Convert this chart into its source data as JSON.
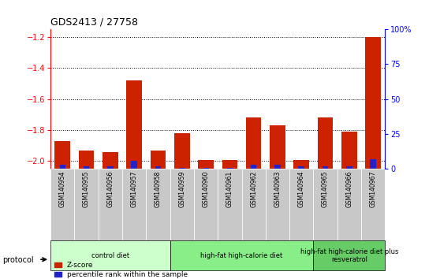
{
  "title": "GDS2413 / 27758",
  "samples": [
    "GSM140954",
    "GSM140955",
    "GSM140956",
    "GSM140957",
    "GSM140958",
    "GSM140959",
    "GSM140960",
    "GSM140961",
    "GSM140962",
    "GSM140963",
    "GSM140964",
    "GSM140965",
    "GSM140966",
    "GSM140967"
  ],
  "zscore": [
    -1.87,
    -1.93,
    -1.94,
    -1.48,
    -1.93,
    -1.82,
    -1.99,
    -1.99,
    -1.72,
    -1.77,
    -1.99,
    -1.72,
    -1.81,
    -1.2
  ],
  "percentile": [
    3,
    2,
    2,
    6,
    2,
    1,
    0.5,
    0.5,
    3,
    3,
    2,
    2,
    2,
    7
  ],
  "ylim_left": [
    -2.05,
    -1.15
  ],
  "ylim_right": [
    0,
    100
  ],
  "yticks_left": [
    -2.0,
    -1.8,
    -1.6,
    -1.4,
    -1.2
  ],
  "yticks_right": [
    0,
    25,
    50,
    75,
    100
  ],
  "ytick_labels_right": [
    "0",
    "25",
    "50",
    "75",
    "100%"
  ],
  "groups": [
    {
      "label": "control diet",
      "start": 0,
      "end": 4,
      "color": "#ccffcc"
    },
    {
      "label": "high-fat high-calorie diet",
      "start": 5,
      "end": 10,
      "color": "#88ee88"
    },
    {
      "label": "high-fat high-calorie diet plus\nresveratrol",
      "start": 11,
      "end": 13,
      "color": "#66cc66"
    }
  ],
  "zscore_color": "#cc2200",
  "percentile_color": "#2222cc",
  "bar_bg_color": "#c8c8c8",
  "grid_color": "#000000",
  "grid_style": "dotted"
}
